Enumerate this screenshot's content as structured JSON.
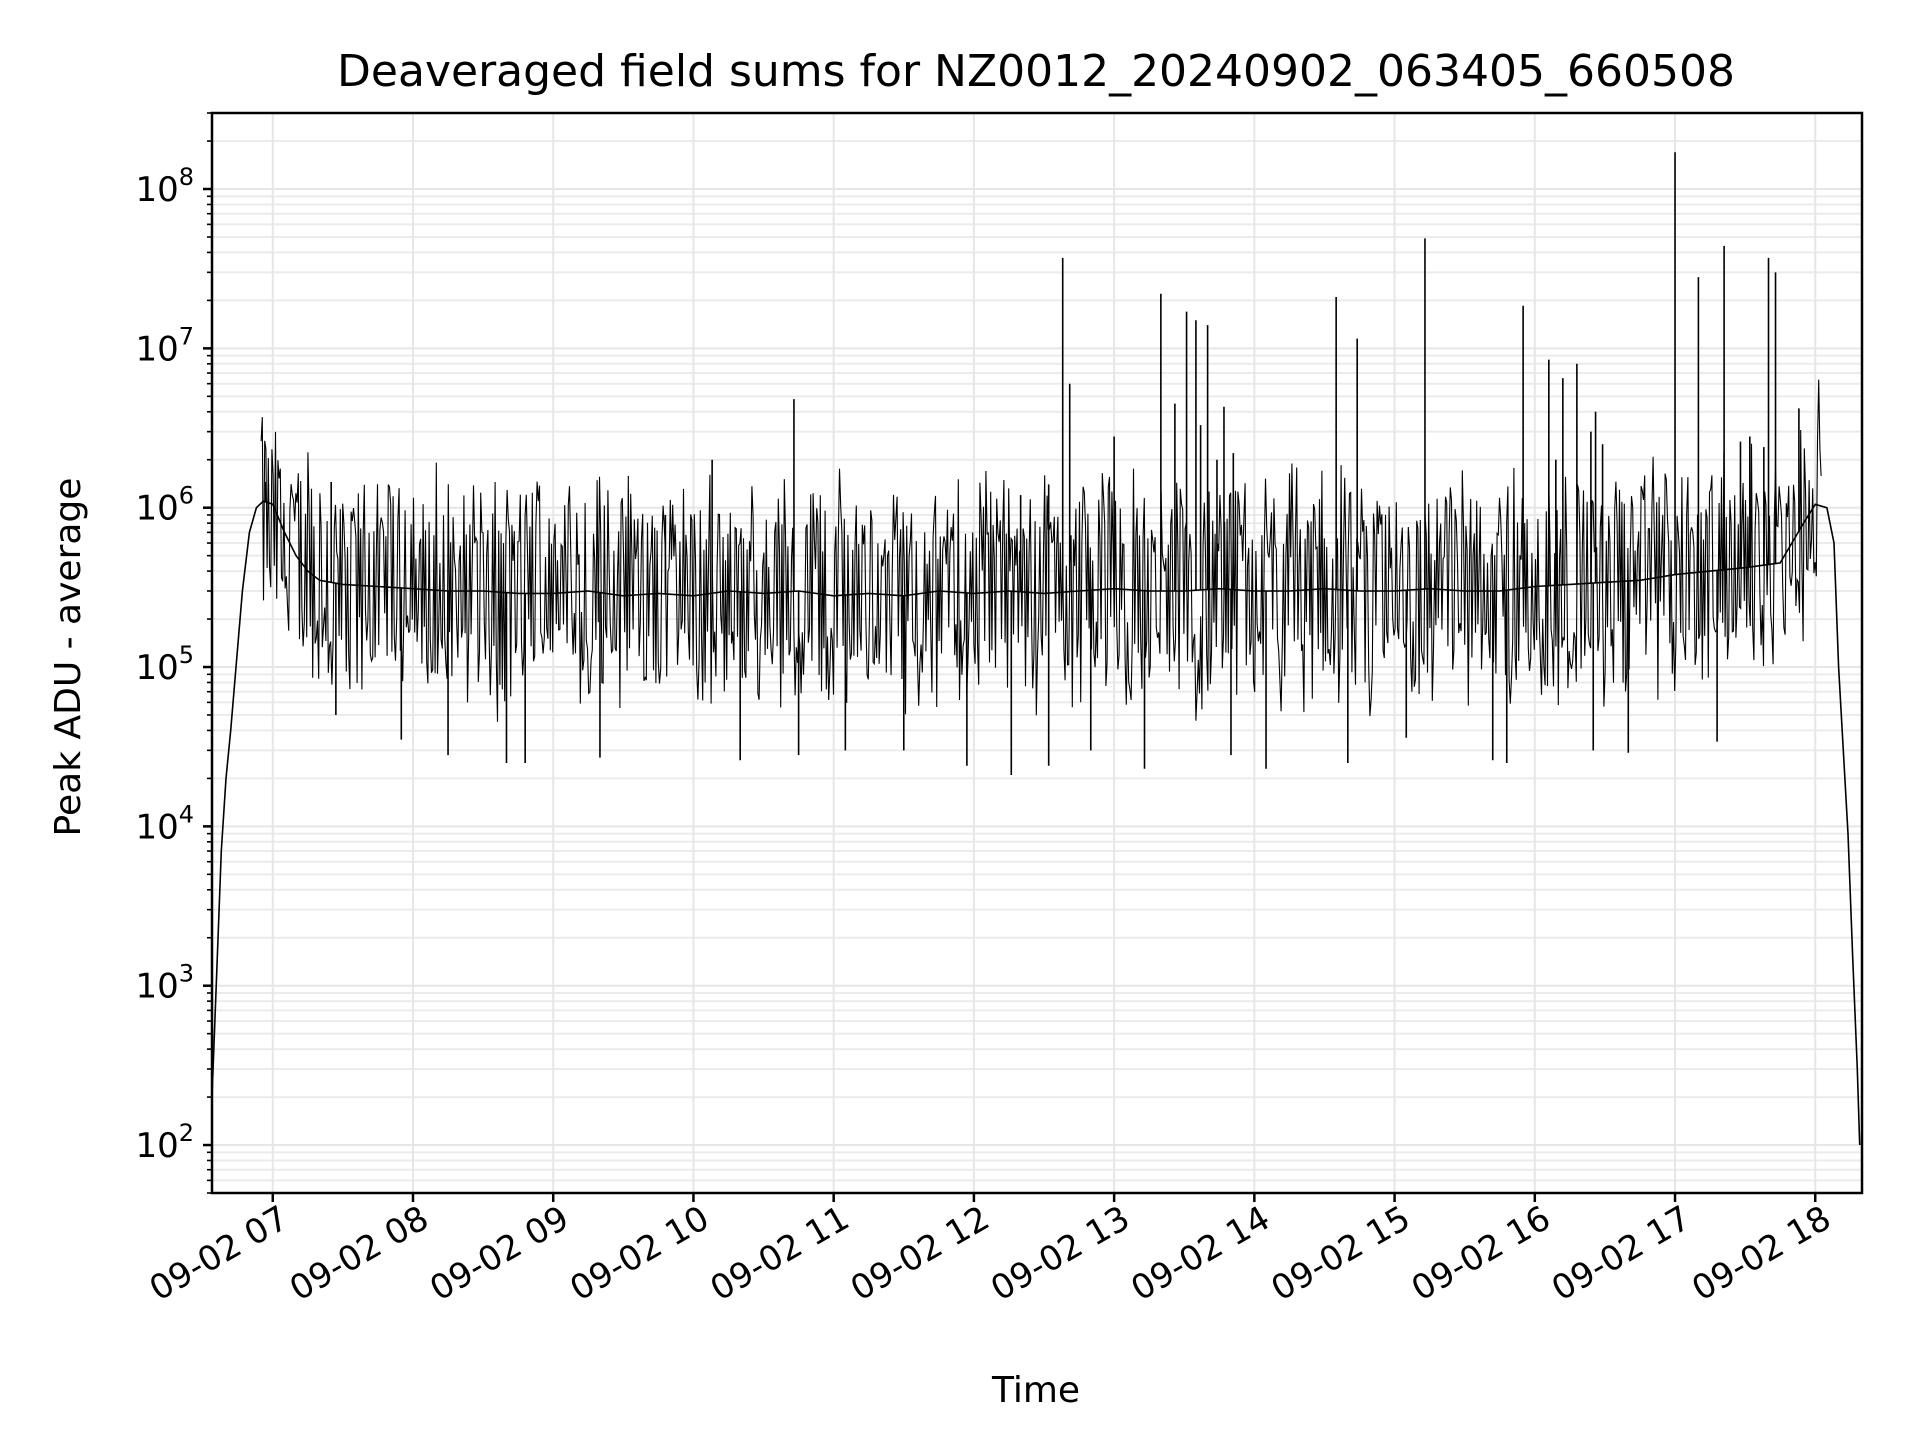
{
  "chart_data": {
    "type": "line",
    "title": "Deaveraged field sums for NZ0012_20240902_063405_660508",
    "xlabel": "Time",
    "ylabel": "Peak ADU - average",
    "x_axis": {
      "type": "time",
      "range": [
        "2024-09-02T06:34:00",
        "2024-09-02T18:20:00"
      ],
      "ticks": [
        "2024-09-02T07:00",
        "2024-09-02T08:00",
        "2024-09-02T09:00",
        "2024-09-02T10:00",
        "2024-09-02T11:00",
        "2024-09-02T12:00",
        "2024-09-02T13:00",
        "2024-09-02T14:00",
        "2024-09-02T15:00",
        "2024-09-02T16:00",
        "2024-09-02T17:00",
        "2024-09-02T18:00"
      ],
      "tick_labels": [
        "09-02 07",
        "09-02 08",
        "09-02 09",
        "09-02 10",
        "09-02 11",
        "09-02 12",
        "09-02 13",
        "09-02 14",
        "09-02 15",
        "09-02 16",
        "09-02 17",
        "09-02 18"
      ]
    },
    "y_axis": {
      "scale": "log",
      "range": [
        50,
        300000000
      ],
      "ticks": [
        100,
        1000,
        10000,
        100000,
        1000000,
        10000000,
        100000000
      ],
      "tick_labels": [
        {
          "base": "10",
          "exp": "2"
        },
        {
          "base": "10",
          "exp": "3"
        },
        {
          "base": "10",
          "exp": "4"
        },
        {
          "base": "10",
          "exp": "5"
        },
        {
          "base": "10",
          "exp": "6"
        },
        {
          "base": "10",
          "exp": "7"
        },
        {
          "base": "10",
          "exp": "8"
        }
      ]
    },
    "grid": true,
    "line_color": "#000000",
    "series": [
      {
        "x": [
          "06:34",
          "06:36",
          "06:38",
          "06:40",
          "06:42",
          "06:44",
          "06:47",
          "06:50",
          "06:53",
          "06:56",
          "07:00",
          "07:05",
          "07:10",
          "07:15",
          "07:20",
          "07:30",
          "07:45",
          "08:00",
          "08:15",
          "08:30",
          "08:45",
          "09:00",
          "09:15",
          "09:30",
          "09:45",
          "10:00",
          "10:15",
          "10:30",
          "10:45",
          "11:00",
          "11:15",
          "11:30",
          "11:45",
          "12:00",
          "12:15",
          "12:30",
          "12:45",
          "13:00",
          "13:15",
          "13:30",
          "13:45",
          "14:00",
          "14:15",
          "14:30",
          "14:45",
          "15:00",
          "15:15",
          "15:30",
          "15:45",
          "16:00",
          "16:15",
          "16:30",
          "16:45",
          "17:00",
          "17:15",
          "17:30",
          "17:45",
          "17:55",
          "18:00",
          "18:05",
          "18:08",
          "18:10",
          "18:12",
          "18:14",
          "18:16",
          "18:18",
          "18:19"
        ],
        "y": [
          200,
          1200,
          7000,
          20000,
          40000,
          90000,
          300000,
          700000,
          1000000,
          1100000,
          1050000,
          700000,
          500000,
          400000,
          350000,
          330000,
          320000,
          310000,
          300000,
          300000,
          290000,
          290000,
          300000,
          280000,
          290000,
          280000,
          300000,
          290000,
          300000,
          280000,
          290000,
          280000,
          300000,
          290000,
          300000,
          290000,
          300000,
          310000,
          300000,
          300000,
          310000,
          300000,
          300000,
          310000,
          300000,
          300000,
          310000,
          300000,
          300000,
          320000,
          330000,
          340000,
          350000,
          380000,
          400000,
          420000,
          450000,
          800000,
          1050000,
          1000000,
          600000,
          100000,
          30000,
          9000,
          1500,
          300,
          100
        ]
      }
    ],
    "spikes_up": [
      {
        "x": "06:57",
        "y": 1450000
      },
      {
        "x": "07:25",
        "y": 1450000
      },
      {
        "x": "09:48",
        "y": 900000
      },
      {
        "x": "10:08",
        "y": 2000000
      },
      {
        "x": "10:43",
        "y": 4800000
      },
      {
        "x": "12:20",
        "y": 1200000
      },
      {
        "x": "12:32",
        "y": 1400000
      },
      {
        "x": "12:38",
        "y": 37000000
      },
      {
        "x": "12:41",
        "y": 6000000
      },
      {
        "x": "13:00",
        "y": 2800000
      },
      {
        "x": "13:20",
        "y": 22000000
      },
      {
        "x": "13:26",
        "y": 4500000
      },
      {
        "x": "13:31",
        "y": 17000000
      },
      {
        "x": "13:35",
        "y": 15000000
      },
      {
        "x": "13:37",
        "y": 3300000
      },
      {
        "x": "13:40",
        "y": 14000000
      },
      {
        "x": "13:44",
        "y": 2000000
      },
      {
        "x": "13:47",
        "y": 4300000
      },
      {
        "x": "13:51",
        "y": 2200000
      },
      {
        "x": "14:35",
        "y": 21000000
      },
      {
        "x": "14:44",
        "y": 11500000
      },
      {
        "x": "15:13",
        "y": 49000000
      },
      {
        "x": "15:55",
        "y": 18500000
      },
      {
        "x": "16:06",
        "y": 8500000
      },
      {
        "x": "16:09",
        "y": 2000000
      },
      {
        "x": "16:12",
        "y": 6500000
      },
      {
        "x": "16:18",
        "y": 8000000
      },
      {
        "x": "16:24",
        "y": 3000000
      },
      {
        "x": "16:26",
        "y": 4000000
      },
      {
        "x": "16:29",
        "y": 2500000
      },
      {
        "x": "17:00",
        "y": 170000000
      },
      {
        "x": "17:10",
        "y": 28000000
      },
      {
        "x": "17:21",
        "y": 44000000
      },
      {
        "x": "17:28",
        "y": 2600000
      },
      {
        "x": "17:32",
        "y": 2800000
      },
      {
        "x": "17:38",
        "y": 2400000
      },
      {
        "x": "17:40",
        "y": 37000000
      },
      {
        "x": "17:43",
        "y": 30000000
      },
      {
        "x": "17:53",
        "y": 4200000
      }
    ],
    "spikes_down": [
      {
        "x": "07:27",
        "y": 50000
      },
      {
        "x": "07:55",
        "y": 35000
      },
      {
        "x": "08:15",
        "y": 28000
      },
      {
        "x": "08:40",
        "y": 25000
      },
      {
        "x": "08:48",
        "y": 25000
      },
      {
        "x": "09:20",
        "y": 27000
      },
      {
        "x": "10:20",
        "y": 26000
      },
      {
        "x": "10:45",
        "y": 28000
      },
      {
        "x": "11:05",
        "y": 30000
      },
      {
        "x": "11:30",
        "y": 30000
      },
      {
        "x": "11:57",
        "y": 24000
      },
      {
        "x": "12:16",
        "y": 21000
      },
      {
        "x": "12:32",
        "y": 24000
      },
      {
        "x": "12:50",
        "y": 30000
      },
      {
        "x": "13:13",
        "y": 23000
      },
      {
        "x": "13:50",
        "y": 28000
      },
      {
        "x": "14:05",
        "y": 23000
      },
      {
        "x": "14:40",
        "y": 25000
      },
      {
        "x": "15:05",
        "y": 36000
      },
      {
        "x": "15:42",
        "y": 26000
      },
      {
        "x": "15:48",
        "y": 25000
      },
      {
        "x": "16:25",
        "y": 30000
      },
      {
        "x": "16:40",
        "y": 29000
      },
      {
        "x": "17:18",
        "y": 34000
      }
    ]
  }
}
